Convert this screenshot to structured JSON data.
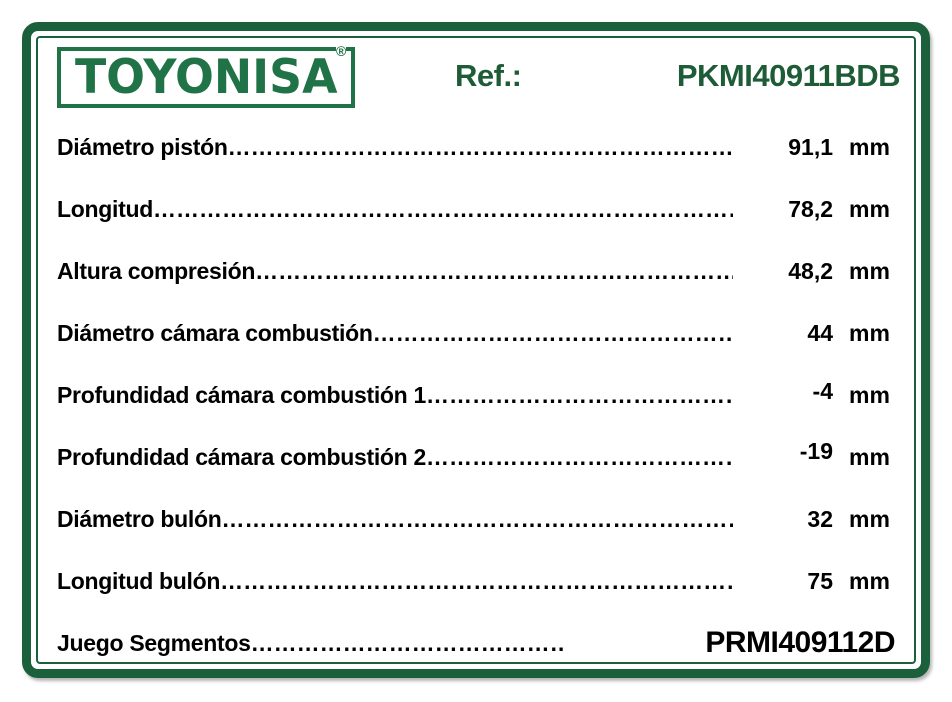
{
  "colors": {
    "border_green": "#1C5F3B",
    "logo_green": "#1F7347",
    "header_green": "#1D5C36"
  },
  "brand": {
    "logo_text": "TOYONISA",
    "registered_mark": "®"
  },
  "header": {
    "ref_label": "Ref.:",
    "ref_value": "PKMI40911BDB"
  },
  "leader_dots": "……………………………………………………………………………………………………………………………………………………………………………………………………………………………………………………………………",
  "specs": {
    "rows": [
      {
        "label": "Diámetro pistón",
        "value": "91,1",
        "unit": "mm"
      },
      {
        "label": "Longitud",
        "value": "78,2",
        "unit": "mm"
      },
      {
        "label": "Altura compresión",
        "value": "48,2",
        "unit": "mm"
      },
      {
        "label": "Diámetro cámara combustión",
        "value": "44",
        "unit": "mm"
      },
      {
        "label": "Profundidad cámara combustión 1",
        "value": "-4",
        "unit": "mm"
      },
      {
        "label": "Profundidad cámara combustión 2",
        "value": "-19",
        "unit": "mm"
      },
      {
        "label": "Diámetro bulón",
        "value": "32",
        "unit": "mm"
      },
      {
        "label": "Longitud bulón",
        "value": "75",
        "unit": "mm"
      }
    ],
    "footer": {
      "label": "Juego Segmentos",
      "value": "PRMI409112D"
    }
  }
}
